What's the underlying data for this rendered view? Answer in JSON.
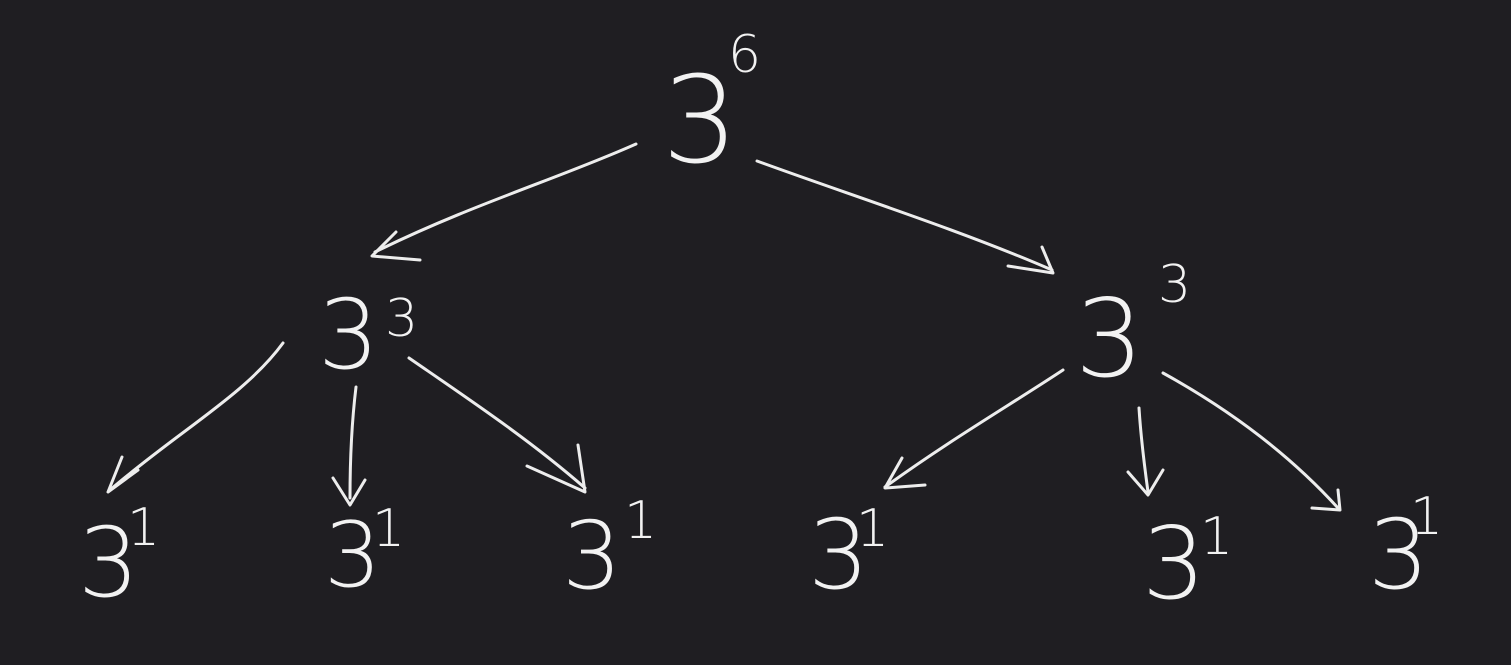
{
  "diagram": {
    "background": "#1f1e22",
    "ink": "#f2f2f2",
    "root": {
      "base": "3",
      "exponent": "6"
    },
    "level1": [
      {
        "base": "3",
        "exponent": "3"
      },
      {
        "base": "3",
        "exponent": "3"
      }
    ],
    "level2": [
      {
        "base": "3",
        "exponent": "1"
      },
      {
        "base": "3",
        "exponent": "1"
      },
      {
        "base": "3",
        "exponent": "1"
      },
      {
        "base": "3",
        "exponent": "1"
      },
      {
        "base": "3",
        "exponent": "1"
      },
      {
        "base": "3",
        "exponent": "1"
      }
    ]
  }
}
